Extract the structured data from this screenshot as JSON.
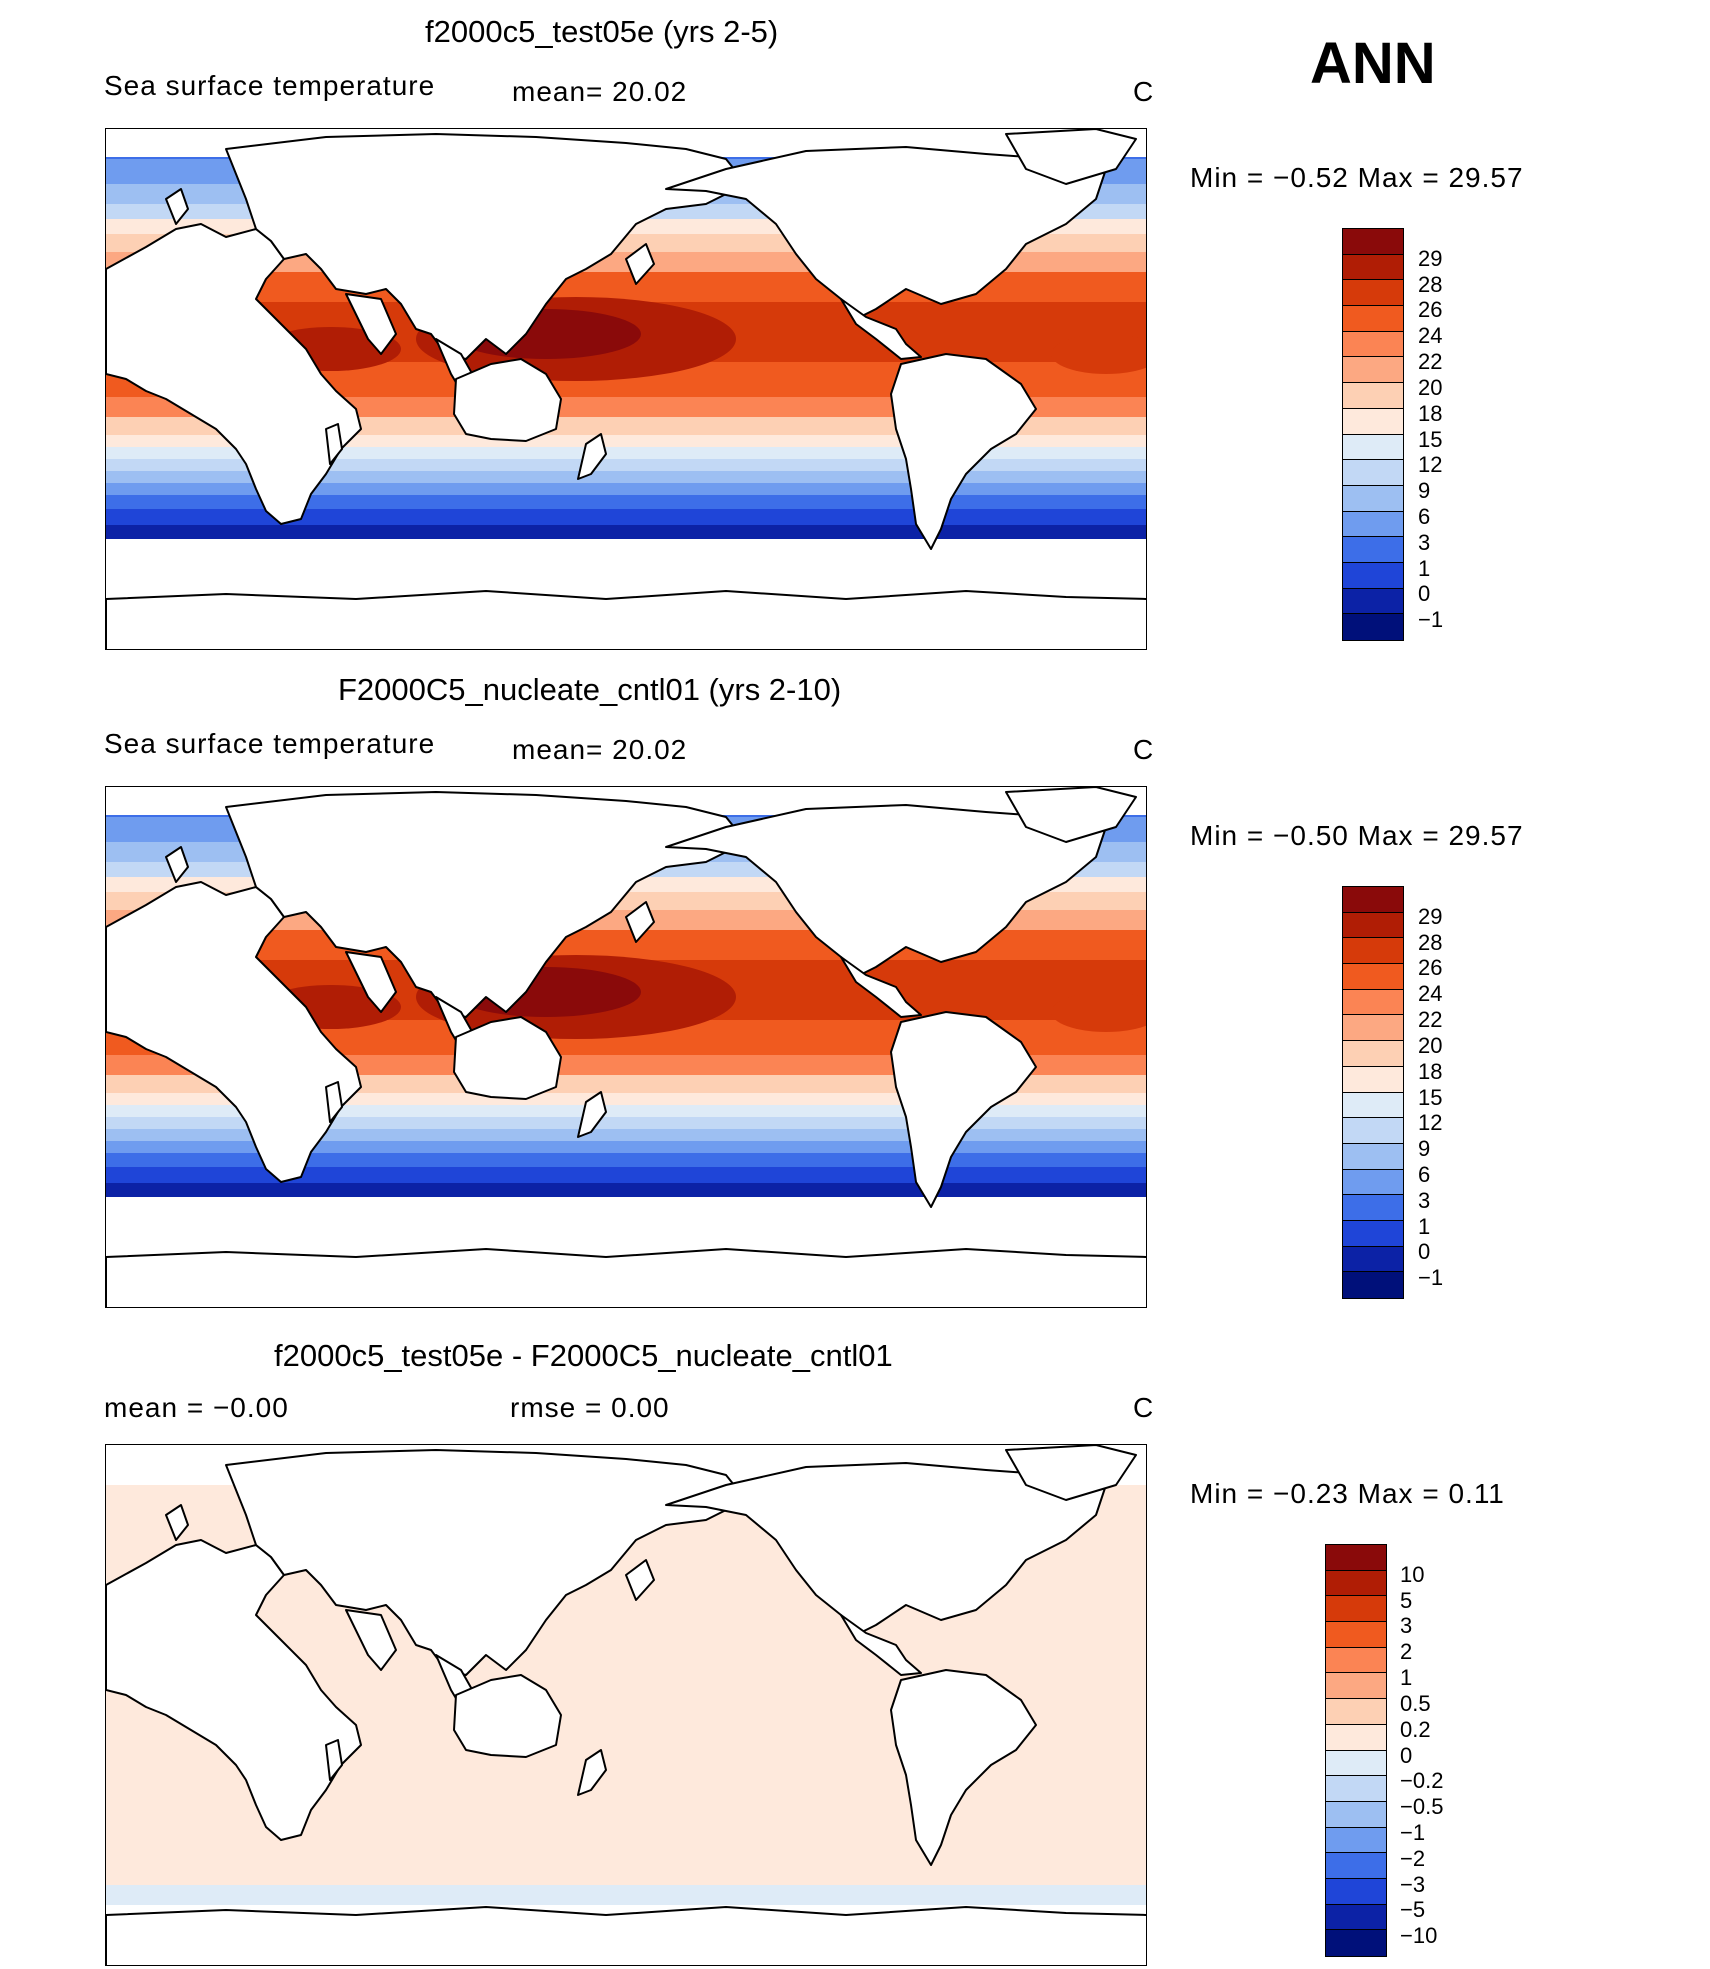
{
  "season": "ANN",
  "panels": [
    {
      "title": "f2000c5_test05e (yrs 2-5)",
      "left_label": "Sea surface temperature",
      "stat1": "mean=   20.02",
      "stat2": "",
      "units": "C",
      "minmax": "Min  =    −0.52  Max  =    29.57",
      "ticks": [
        "29",
        "28",
        "26",
        "24",
        "22",
        "20",
        "18",
        "15",
        "12",
        "9",
        "6",
        "3",
        "1",
        "0",
        "−1"
      ]
    },
    {
      "title": "F2000C5_nucleate_cntl01 (yrs 2-10)",
      "left_label": "Sea surface temperature",
      "stat1": "mean=   20.02",
      "stat2": "",
      "units": "C",
      "minmax": "Min  =    −0.50  Max  =    29.57",
      "ticks": [
        "29",
        "28",
        "26",
        "24",
        "22",
        "20",
        "18",
        "15",
        "12",
        "9",
        "6",
        "3",
        "1",
        "0",
        "−1"
      ]
    },
    {
      "title": "f2000c5_test05e - F2000C5_nucleate_cntl01",
      "left_label": "mean  =   −0.00",
      "stat1": "rmse  =     0.00",
      "stat2": "",
      "units": "C",
      "minmax": "Min  =    −0.23  Max  =      0.11",
      "ticks": [
        "10",
        "5",
        "3",
        "2",
        "1",
        "0.5",
        "0.2",
        "0",
        "−0.2",
        "−0.5",
        "−1",
        "−2",
        "−3",
        "−5",
        "−10"
      ]
    }
  ],
  "colors": {
    "warm_scale": [
      "#8a0a0a",
      "#b01d05",
      "#d63a0a",
      "#f05a1f",
      "#fb8454",
      "#fca882",
      "#fdd0b4",
      "#fee9dc",
      "#deebf7",
      "#c2d8f5",
      "#9dbff2",
      "#6f9cef",
      "#3d6ee8",
      "#1f45d8",
      "#0c22a6",
      "#00107a"
    ],
    "diff_scale": [
      "#8a0a0a",
      "#b01d05",
      "#d63a0a",
      "#f05a1f",
      "#fb8454",
      "#fca882",
      "#fdd0b4",
      "#fee9dc",
      "#deebf7",
      "#c2d8f5",
      "#9dbff2",
      "#6f9cef",
      "#3d6ee8",
      "#1f45d8",
      "#0c22a6",
      "#00107a"
    ],
    "land": "#ffffff",
    "coast": "#000000"
  }
}
